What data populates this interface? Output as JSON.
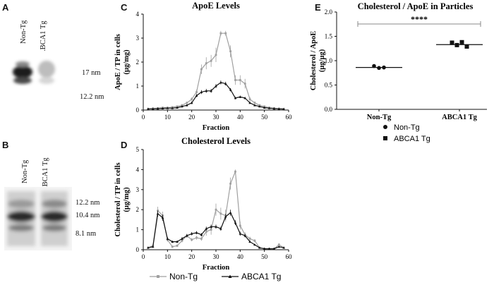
{
  "panels": {
    "a": {
      "letter": "A",
      "lanes": [
        "Non-Tg",
        "ABCA1 Tg"
      ],
      "sizes": [
        "17 nm",
        "12.2 nm"
      ]
    },
    "b": {
      "letter": "B",
      "lanes": [
        "Non-Tg",
        "ABCA1 Tg"
      ],
      "sizes": [
        "12.2 nm",
        "10.4 nm",
        "8.1 nm"
      ]
    },
    "c": {
      "letter": "C"
    },
    "d": {
      "letter": "D"
    },
    "e": {
      "letter": "E"
    }
  },
  "legend_lines": {
    "series": [
      "Non-Tg",
      "ABCA1 Tg"
    ],
    "colors": [
      "#a0a0a0",
      "#111111"
    ]
  },
  "chart_data": [
    {
      "type": "line",
      "title": "ApoE Levels",
      "xlabel": "Fraction",
      "ylabel_lines": [
        "ApoE / TP in cells",
        "(µg/mg)"
      ],
      "xlim": [
        0,
        60
      ],
      "ylim": [
        0,
        4
      ],
      "xticks": [
        0,
        10,
        20,
        30,
        40,
        50,
        60
      ],
      "yticks": [
        0,
        1,
        2,
        3,
        4
      ],
      "x": [
        2,
        4,
        6,
        8,
        10,
        12,
        14,
        16,
        18,
        20,
        22,
        24,
        26,
        28,
        30,
        32,
        34,
        36,
        38,
        40,
        42,
        44,
        46,
        48,
        50,
        52,
        54,
        56,
        58
      ],
      "series": [
        {
          "name": "Non-Tg",
          "color": "#a0a0a0",
          "values": [
            0.05,
            0.07,
            0.08,
            0.1,
            0.1,
            0.12,
            0.15,
            0.2,
            0.3,
            0.45,
            0.75,
            1.7,
            1.95,
            2.05,
            2.3,
            3.2,
            3.2,
            2.45,
            1.25,
            1.25,
            1.1,
            0.45,
            0.3,
            0.2,
            0.15,
            0.1,
            0.08,
            0.06,
            0.05
          ],
          "errors": [
            0.03,
            0.03,
            0.03,
            0.03,
            0.03,
            0.04,
            0.04,
            0.05,
            0.05,
            0.08,
            0.1,
            0.2,
            0.25,
            0.25,
            0.3,
            0.1,
            0.1,
            0.25,
            0.2,
            0.2,
            0.2,
            0.1,
            0.06,
            0.05,
            0.04,
            0.03,
            0.03,
            0.03,
            0.02
          ]
        },
        {
          "name": "ABCA1 Tg",
          "color": "#111111",
          "values": [
            0.05,
            0.05,
            0.06,
            0.07,
            0.08,
            0.08,
            0.1,
            0.15,
            0.2,
            0.3,
            0.6,
            0.75,
            0.8,
            0.8,
            1.0,
            1.15,
            1.1,
            0.85,
            0.5,
            0.55,
            0.5,
            0.3,
            0.2,
            0.15,
            0.1,
            0.08,
            0.06,
            0.05,
            0.04
          ],
          "errors": [
            0.02,
            0.02,
            0.02,
            0.02,
            0.02,
            0.02,
            0.03,
            0.03,
            0.04,
            0.05,
            0.06,
            0.08,
            0.08,
            0.08,
            0.08,
            0.08,
            0.08,
            0.07,
            0.05,
            0.05,
            0.05,
            0.04,
            0.03,
            0.03,
            0.02,
            0.02,
            0.02,
            0.02,
            0.02
          ]
        }
      ]
    },
    {
      "type": "line",
      "title": "Cholesterol Levels",
      "xlabel": "Fraction",
      "ylabel_lines": [
        "Cholesterol / TP in cells",
        "(µg/mg)"
      ],
      "xlim": [
        0,
        60
      ],
      "ylim": [
        0,
        5
      ],
      "xticks": [
        0,
        10,
        20,
        30,
        40,
        50,
        60
      ],
      "yticks": [
        0,
        1,
        2,
        3,
        4,
        5
      ],
      "x": [
        2,
        4,
        6,
        8,
        10,
        12,
        14,
        16,
        18,
        20,
        22,
        24,
        26,
        28,
        30,
        32,
        34,
        36,
        38,
        40,
        42,
        44,
        46,
        48,
        50,
        52,
        54,
        56,
        58
      ],
      "series": [
        {
          "name": "Non-Tg",
          "color": "#a0a0a0",
          "values": [
            0.1,
            0.2,
            1.95,
            1.7,
            0.5,
            0.15,
            0.2,
            0.45,
            0.7,
            0.5,
            0.6,
            0.55,
            0.9,
            1.0,
            2.0,
            1.8,
            1.7,
            3.3,
            3.9,
            1.2,
            0.75,
            0.55,
            0.45,
            0.1,
            0.05,
            0.05,
            0.05,
            0.25,
            0.1
          ],
          "errors": [
            0.05,
            0.1,
            0.2,
            0.2,
            0.1,
            0.06,
            0.06,
            0.08,
            0.1,
            0.08,
            0.1,
            0.1,
            0.2,
            0.25,
            0.3,
            0.3,
            0.3,
            0.3,
            0.1,
            0.2,
            0.12,
            0.1,
            0.08,
            0.04,
            0.03,
            0.03,
            0.03,
            0.08,
            0.05
          ]
        },
        {
          "name": "ABCA1 Tg",
          "color": "#111111",
          "values": [
            0.1,
            0.15,
            1.8,
            1.6,
            0.55,
            0.4,
            0.4,
            0.55,
            0.7,
            0.8,
            0.85,
            0.75,
            1.05,
            1.15,
            1.15,
            1.05,
            1.65,
            1.85,
            1.35,
            0.8,
            0.7,
            0.4,
            0.25,
            0.1,
            0.05,
            0.05,
            0.05,
            0.15,
            0.1
          ],
          "errors": [
            0.04,
            0.05,
            0.15,
            0.15,
            0.08,
            0.06,
            0.06,
            0.08,
            0.08,
            0.08,
            0.08,
            0.08,
            0.1,
            0.1,
            0.1,
            0.1,
            0.15,
            0.15,
            0.12,
            0.1,
            0.08,
            0.06,
            0.04,
            0.03,
            0.02,
            0.02,
            0.02,
            0.04,
            0.03
          ]
        }
      ]
    },
    {
      "type": "scatter",
      "title": "Cholesterol / ApoE in Particles",
      "ylabel_lines": [
        "Cholesterol / ApoE",
        "(µg/µg)"
      ],
      "categories": [
        "Non-Tg",
        "ABCA1 Tg"
      ],
      "ylim": [
        0,
        2
      ],
      "yticks": [
        0.0,
        0.5,
        1.0,
        1.5,
        2.0
      ],
      "ytick_labels": [
        "0.0",
        "0.5",
        "1.0",
        "1.5",
        "2.0"
      ],
      "significance": "****",
      "groups": [
        {
          "name": "Non-Tg",
          "marker": "circle",
          "points": [
            0.89,
            0.85,
            0.86
          ],
          "mean": 0.86
        },
        {
          "name": "ABCA1 Tg",
          "marker": "square",
          "points": [
            1.37,
            1.32,
            1.38,
            1.29
          ],
          "mean": 1.33
        }
      ]
    }
  ]
}
